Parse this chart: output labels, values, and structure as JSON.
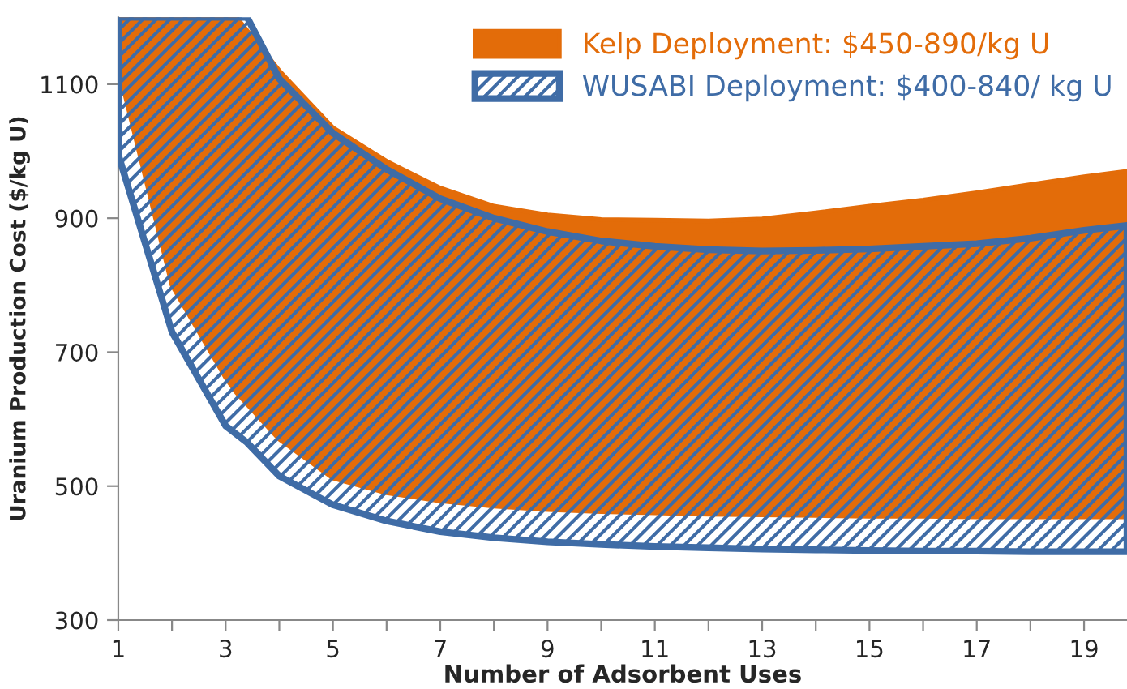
{
  "chart_data": {
    "type": "area",
    "xlabel": "Number of Adsorbent Uses",
    "ylabel": "Uranium Production Cost ($/kg U)",
    "xlim": [
      1,
      19.8
    ],
    "ylim": [
      300,
      1200
    ],
    "xticks": [
      1,
      {
        "value": 2,
        "label": null
      },
      3,
      {
        "value": 4,
        "label": null
      },
      5,
      {
        "value": 6,
        "label": null
      },
      7,
      {
        "value": 8,
        "label": null
      },
      9,
      {
        "value": 10,
        "label": null
      },
      11,
      {
        "value": 12,
        "label": null
      },
      13,
      {
        "value": 14,
        "label": null
      },
      15,
      {
        "value": 16,
        "label": null
      },
      17,
      {
        "value": 18,
        "label": null
      },
      19
    ],
    "yticks": [
      300,
      500,
      700,
      900,
      1100
    ],
    "grid": false,
    "legend": "top right",
    "series": [
      {
        "name": "Kelp Deployment: $450-890/kg U",
        "color": "#e36c09",
        "x": [
          1,
          2,
          3,
          3.2,
          4,
          5,
          6,
          7,
          8,
          9,
          10,
          11,
          12,
          13,
          14,
          15,
          16,
          17,
          18,
          19,
          19.8
        ],
        "values": [
          null,
          null,
          null,
          null,
          null,
          null,
          null,
          null,
          null,
          null,
          null,
          null,
          null,
          null,
          null,
          null,
          null,
          null,
          null,
          null,
          null
        ],
        "upper": [
          1200,
          1200,
          1200,
          1200,
          1120,
          1035,
          985,
          945,
          918,
          905,
          898,
          897,
          896,
          899,
          908,
          918,
          927,
          938,
          950,
          962,
          970
        ],
        "lower": [
          1125,
          800,
          662,
          640,
          570,
          512,
          490,
          478,
          470,
          465,
          462,
          460,
          458,
          457,
          456,
          455,
          455,
          454,
          454,
          454,
          454
        ]
      },
      {
        "name": "WUSABI Deployment: $400-840/ kg U",
        "color": "#3f6ca6",
        "x": [
          1,
          2,
          3,
          3.4,
          4,
          5,
          6,
          7,
          8,
          9,
          10,
          11,
          12,
          13,
          14,
          15,
          16,
          17,
          18,
          19,
          19.8
        ],
        "values": [
          null,
          null,
          null,
          null,
          null,
          null,
          null,
          null,
          null,
          null,
          null,
          null,
          null,
          null,
          null,
          null,
          null,
          null,
          null,
          null,
          null
        ],
        "upper": [
          1200,
          1200,
          1200,
          1200,
          1108,
          1027,
          973,
          929,
          900,
          880,
          866,
          858,
          853,
          851,
          852,
          854,
          858,
          862,
          870,
          882,
          889
        ],
        "lower": [
          995,
          730,
          590,
          565,
          515,
          472,
          448,
          432,
          423,
          417,
          413,
          410,
          408,
          406,
          405,
          404,
          403,
          403,
          402,
          402,
          402
        ]
      }
    ]
  }
}
